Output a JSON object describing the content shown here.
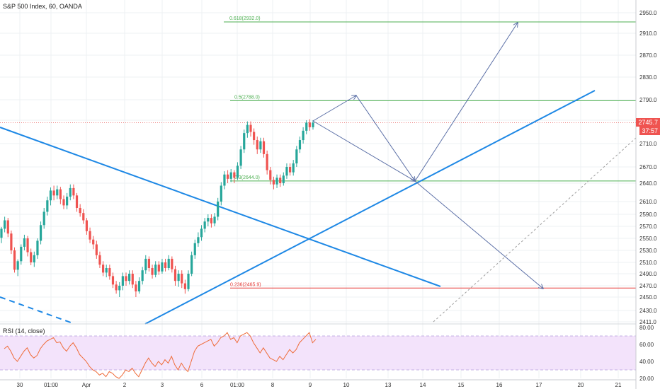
{
  "header": {
    "title": "S&P 500 Index, 60, OANDA"
  },
  "rsi": {
    "label": "RSI (14, close)",
    "axis_labels": [
      "80.00",
      "60.00",
      "40.00",
      "20.00"
    ]
  },
  "price_labels": {
    "last": "2745.7",
    "countdown": "37:57"
  },
  "colors": {
    "up": "#26a69a",
    "down": "#ef5350",
    "trend": "#1e88e5",
    "proj": "#5b6fa6",
    "fib_green": "#4caf50",
    "fib_red": "#e53935",
    "rsi_line": "#ef6c3a",
    "rsi_band": "#f3e3fb"
  },
  "chart_data": {
    "type": "candlestick",
    "y_axis": {
      "ticks": [
        2411.0,
        2430.0,
        2450.0,
        2470.0,
        2490.0,
        2510.0,
        2530.0,
        2550.0,
        2570.0,
        2590.0,
        2610.0,
        2640.0,
        2670.0,
        2710.0,
        2750.0,
        2790.0,
        2830.0,
        2870.0,
        2910.0,
        2950.0
      ],
      "tick_labels": [
        "2411.0",
        "2430.0",
        "2450.0",
        "2470.0",
        "2490.0",
        "2510.0",
        "2530.0",
        "2550.0",
        "2570.0",
        "2590.0",
        "2610.0",
        "2640.0",
        "2670.0",
        "2710.0",
        "2750.0",
        "2790.0",
        "2830.0",
        "2870.0",
        "2910.0",
        "2950.0"
      ]
    },
    "x_axis": {
      "tick_labels": [
        "30",
        "01:00",
        "Apr",
        "2",
        "3",
        "6",
        "01:00",
        "8",
        "9",
        "10",
        "13",
        "14",
        "15",
        "16",
        "17",
        "20",
        "21"
      ]
    },
    "fib_levels": [
      {
        "label": "0.618(2932.0)",
        "value": 2932.0,
        "color": "green"
      },
      {
        "label": "0.5(2788.0)",
        "value": 2788.0,
        "color": "green"
      },
      {
        "label": "0.3",
        "value_label": "(2644.0)",
        "value": 2644.0,
        "color": "green"
      },
      {
        "label": "0.236(2465.9)",
        "value": 2465.9,
        "color": "red"
      }
    ],
    "last_price": 2745.7,
    "candles": [
      [
        2551,
        2566,
        2542,
        2569
      ],
      [
        2566,
        2580,
        2560,
        2586
      ],
      [
        2580,
        2558,
        2552,
        2584
      ],
      [
        2558,
        2530,
        2524,
        2563
      ],
      [
        2530,
        2497,
        2492,
        2535
      ],
      [
        2497,
        2512,
        2486,
        2515
      ],
      [
        2512,
        2536,
        2506,
        2540
      ],
      [
        2536,
        2550,
        2530,
        2556
      ],
      [
        2550,
        2527,
        2520,
        2554
      ],
      [
        2527,
        2510,
        2505,
        2533
      ],
      [
        2510,
        2522,
        2502,
        2528
      ],
      [
        2522,
        2546,
        2516,
        2550
      ],
      [
        2546,
        2572,
        2540,
        2578
      ],
      [
        2572,
        2594,
        2566,
        2600
      ],
      [
        2594,
        2612,
        2588,
        2618
      ],
      [
        2612,
        2628,
        2604,
        2633
      ],
      [
        2628,
        2620,
        2612,
        2636
      ],
      [
        2620,
        2630,
        2614,
        2636
      ],
      [
        2630,
        2614,
        2606,
        2634
      ],
      [
        2614,
        2604,
        2598,
        2620
      ],
      [
        2604,
        2618,
        2598,
        2624
      ],
      [
        2618,
        2632,
        2612,
        2638
      ],
      [
        2632,
        2620,
        2614,
        2638
      ],
      [
        2620,
        2600,
        2594,
        2624
      ],
      [
        2600,
        2592,
        2586,
        2606
      ],
      [
        2592,
        2580,
        2574,
        2598
      ],
      [
        2580,
        2562,
        2556,
        2584
      ],
      [
        2562,
        2548,
        2542,
        2568
      ],
      [
        2548,
        2540,
        2532,
        2554
      ],
      [
        2540,
        2522,
        2516,
        2546
      ],
      [
        2522,
        2506,
        2500,
        2528
      ],
      [
        2506,
        2492,
        2486,
        2512
      ],
      [
        2492,
        2500,
        2484,
        2506
      ],
      [
        2500,
        2486,
        2480,
        2506
      ],
      [
        2486,
        2472,
        2466,
        2492
      ],
      [
        2472,
        2462,
        2456,
        2478
      ],
      [
        2462,
        2470,
        2450,
        2476
      ],
      [
        2470,
        2486,
        2462,
        2492
      ],
      [
        2486,
        2478,
        2470,
        2492
      ],
      [
        2478,
        2490,
        2472,
        2496
      ],
      [
        2490,
        2472,
        2466,
        2496
      ],
      [
        2472,
        2460,
        2450,
        2478
      ],
      [
        2460,
        2478,
        2456,
        2484
      ],
      [
        2478,
        2496,
        2472,
        2502
      ],
      [
        2496,
        2516,
        2490,
        2522
      ],
      [
        2516,
        2500,
        2494,
        2520
      ],
      [
        2500,
        2488,
        2482,
        2506
      ],
      [
        2488,
        2506,
        2484,
        2512
      ],
      [
        2506,
        2494,
        2488,
        2512
      ],
      [
        2494,
        2510,
        2490,
        2516
      ],
      [
        2510,
        2500,
        2494,
        2516
      ],
      [
        2500,
        2516,
        2496,
        2522
      ],
      [
        2516,
        2498,
        2492,
        2520
      ],
      [
        2498,
        2478,
        2470,
        2504
      ],
      [
        2478,
        2490,
        2468,
        2496
      ],
      [
        2490,
        2474,
        2466,
        2496
      ],
      [
        2474,
        2464,
        2456,
        2480
      ],
      [
        2464,
        2490,
        2460,
        2496
      ],
      [
        2490,
        2522,
        2486,
        2528
      ],
      [
        2522,
        2542,
        2516,
        2548
      ],
      [
        2542,
        2552,
        2536,
        2560
      ],
      [
        2552,
        2566,
        2546,
        2572
      ],
      [
        2566,
        2578,
        2560,
        2584
      ],
      [
        2578,
        2584,
        2570,
        2590
      ],
      [
        2584,
        2575,
        2568,
        2590
      ],
      [
        2575,
        2586,
        2570,
        2592
      ],
      [
        2586,
        2610,
        2580,
        2616
      ],
      [
        2610,
        2636,
        2604,
        2642
      ],
      [
        2636,
        2656,
        2630,
        2662
      ],
      [
        2656,
        2648,
        2640,
        2664
      ],
      [
        2648,
        2660,
        2642,
        2666
      ],
      [
        2660,
        2650,
        2640,
        2664
      ],
      [
        2650,
        2672,
        2646,
        2678
      ],
      [
        2672,
        2700,
        2666,
        2706
      ],
      [
        2700,
        2728,
        2694,
        2734
      ],
      [
        2728,
        2742,
        2720,
        2748
      ],
      [
        2742,
        2730,
        2722,
        2748
      ],
      [
        2730,
        2716,
        2708,
        2736
      ],
      [
        2716,
        2700,
        2692,
        2722
      ],
      [
        2700,
        2714,
        2694,
        2720
      ],
      [
        2714,
        2692,
        2686,
        2720
      ],
      [
        2692,
        2664,
        2656,
        2698
      ],
      [
        2664,
        2646,
        2638,
        2670
      ],
      [
        2646,
        2638,
        2630,
        2652
      ],
      [
        2638,
        2650,
        2632,
        2656
      ],
      [
        2650,
        2640,
        2634,
        2656
      ],
      [
        2640,
        2654,
        2636,
        2660
      ],
      [
        2654,
        2670,
        2648,
        2676
      ],
      [
        2670,
        2660,
        2654,
        2676
      ],
      [
        2660,
        2676,
        2654,
        2682
      ],
      [
        2676,
        2700,
        2670,
        2706
      ],
      [
        2700,
        2716,
        2694,
        2722
      ],
      [
        2716,
        2732,
        2710,
        2738
      ],
      [
        2732,
        2746,
        2726,
        2750
      ],
      [
        2746,
        2738,
        2732,
        2752
      ],
      [
        2738,
        2746,
        2734,
        2750
      ]
    ],
    "rsi_values": [
      55,
      58,
      52,
      44,
      40,
      46,
      52,
      56,
      48,
      44,
      47,
      55,
      60,
      64,
      66,
      68,
      62,
      63,
      56,
      52,
      58,
      62,
      56,
      48,
      44,
      40,
      34,
      30,
      28,
      24,
      26,
      22,
      28,
      26,
      22,
      20,
      24,
      30,
      28,
      32,
      26,
      22,
      30,
      38,
      44,
      38,
      34,
      40,
      36,
      42,
      38,
      46,
      36,
      30,
      38,
      32,
      28,
      40,
      52,
      58,
      60,
      62,
      64,
      66,
      58,
      62,
      68,
      70,
      74,
      66,
      68,
      62,
      70,
      72,
      74,
      70,
      62,
      56,
      50,
      56,
      50,
      44,
      42,
      40,
      46,
      42,
      48,
      54,
      50,
      54,
      62,
      66,
      70,
      74,
      62,
      66
    ]
  }
}
